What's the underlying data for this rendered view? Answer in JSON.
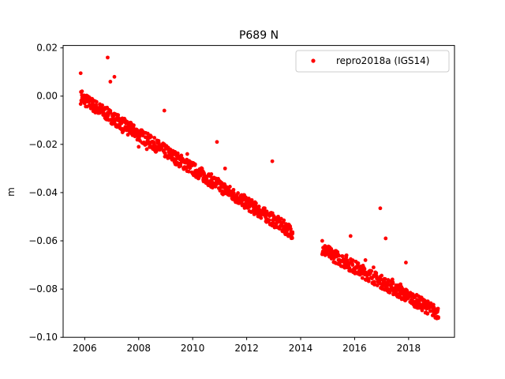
{
  "chart_data": {
    "type": "scatter",
    "title": "P689 N",
    "xlabel": "",
    "ylabel": "m",
    "xlim": [
      2005.2,
      2019.7
    ],
    "ylim": [
      -0.1,
      0.021
    ],
    "x_ticks": [
      2006,
      2008,
      2010,
      2012,
      2014,
      2016,
      2018
    ],
    "y_ticks": [
      0.02,
      0.0,
      -0.02,
      -0.04,
      -0.06,
      -0.08,
      -0.1
    ],
    "x_tick_labels": [
      "2006",
      "2008",
      "2010",
      "2012",
      "2014",
      "2016",
      "2018"
    ],
    "y_tick_labels": [
      "0.02",
      "0.00",
      "−0.02",
      "−0.04",
      "−0.06",
      "−0.08",
      "−0.10"
    ],
    "grid": false,
    "legend_position": "top-right",
    "series": [
      {
        "name": "repro2018a (IGS14)",
        "color": "#ff0000",
        "marker": "dot",
        "trend_segments": [
          {
            "x": [
              2005.85,
              2013.7
            ],
            "y": [
              -0.0005,
              -0.0565
            ]
          },
          {
            "x": [
              2014.8,
              2019.1
            ],
            "y": [
              -0.0635,
              -0.09
            ]
          }
        ],
        "x": [
          2005.85,
          2005.9,
          2006.2,
          2006.5,
          2006.75,
          2006.85,
          2006.95,
          2007.1,
          2007.25,
          2007.4,
          2007.6,
          2007.8,
          2008.0,
          2008.3,
          2008.6,
          2008.95,
          2009.2,
          2009.5,
          2009.8,
          2010.1,
          2010.4,
          2010.7,
          2010.9,
          2011.2,
          2011.5,
          2011.8,
          2012.1,
          2012.4,
          2012.7,
          2012.95,
          2013.2,
          2013.45,
          2013.7,
          2014.8,
          2015.1,
          2015.4,
          2015.7,
          2015.85,
          2016.1,
          2016.4,
          2016.7,
          2016.95,
          2017.15,
          2017.4,
          2017.7,
          2017.9,
          2018.1,
          2018.4,
          2018.7,
          2019.0,
          2019.1
        ],
        "y": [
          0.0095,
          0.002,
          -0.002,
          -0.007,
          -0.009,
          0.016,
          0.006,
          0.008,
          -0.009,
          -0.015,
          -0.016,
          -0.016,
          -0.021,
          -0.022,
          -0.022,
          -0.006,
          -0.025,
          -0.028,
          -0.024,
          -0.031,
          -0.034,
          -0.036,
          -0.019,
          -0.03,
          -0.041,
          -0.044,
          -0.045,
          -0.046,
          -0.05,
          -0.027,
          -0.052,
          -0.055,
          -0.057,
          -0.06,
          -0.064,
          -0.066,
          -0.066,
          -0.058,
          -0.071,
          -0.068,
          -0.071,
          -0.0465,
          -0.059,
          -0.076,
          -0.078,
          -0.069,
          -0.083,
          -0.086,
          -0.088,
          -0.09,
          -0.092
        ]
      }
    ]
  }
}
